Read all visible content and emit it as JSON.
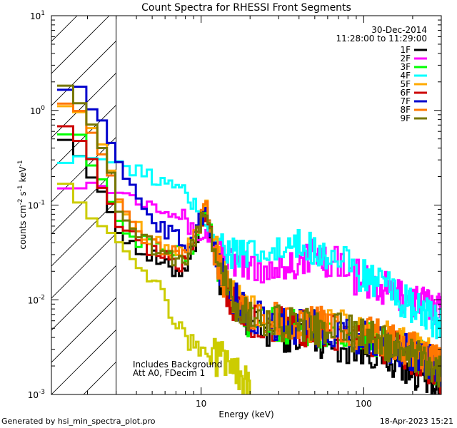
{
  "chart_data": {
    "type": "line",
    "title": "Count Spectra for RHESSI Front Segments",
    "xlabel": "Energy (keV)",
    "ylabel": {
      "base": "counts cm",
      "exp1": "-2",
      "mid1": " s",
      "exp2": "-1",
      "mid2": " keV",
      "exp3": "-1"
    },
    "xscale": "log",
    "yscale": "log",
    "xlim": [
      1.2,
      300
    ],
    "ylim": [
      0.001,
      10
    ],
    "x_ticks": [
      {
        "v": 10,
        "label": "10"
      },
      {
        "v": 100,
        "label": "100"
      }
    ],
    "y_ticks": [
      {
        "v": 0.001,
        "base": "10",
        "exp": "-3"
      },
      {
        "v": 0.01,
        "base": "10",
        "exp": "-2"
      },
      {
        "v": 0.1,
        "base": "10",
        "exp": "-1"
      },
      {
        "v": 1,
        "base": "10",
        "exp": "0"
      },
      {
        "v": 10,
        "base": "10",
        "exp": "1"
      }
    ],
    "hatched_region_max_keV": 3,
    "date": "30-Dec-2014",
    "time_range": "11:28:00 to 11:29:00",
    "annotation_lines": [
      "Includes Background",
      "Att A0, FDecim 1"
    ],
    "series": [
      {
        "name": "1F",
        "color": "#000000",
        "anchors": [
          [
            1.3,
            0.7
          ],
          [
            1.6,
            0.45
          ],
          [
            1.9,
            0.3
          ],
          [
            2.3,
            0.15
          ],
          [
            2.8,
            0.085
          ],
          [
            3.2,
            0.05
          ],
          [
            4,
            0.035
          ],
          [
            5,
            0.028
          ],
          [
            6,
            0.022
          ],
          [
            7,
            0.02
          ],
          [
            8,
            0.022
          ],
          [
            9,
            0.035
          ],
          [
            10,
            0.065
          ],
          [
            10.8,
            0.085
          ],
          [
            11.6,
            0.04
          ],
          [
            13,
            0.018
          ],
          [
            16,
            0.008
          ],
          [
            20,
            0.005
          ],
          [
            30,
            0.0045
          ],
          [
            50,
            0.004
          ],
          [
            80,
            0.0032
          ],
          [
            120,
            0.0028
          ],
          [
            180,
            0.002
          ],
          [
            250,
            0.0015
          ],
          [
            300,
            0.0012
          ]
        ]
      },
      {
        "name": "2F",
        "color": "#ff00ff",
        "anchors": [
          [
            1.3,
            0.17
          ],
          [
            2,
            0.165
          ],
          [
            2.5,
            0.16
          ],
          [
            3,
            0.14
          ],
          [
            4,
            0.12
          ],
          [
            5,
            0.11
          ],
          [
            6,
            0.1
          ],
          [
            7,
            0.085
          ],
          [
            8,
            0.07
          ],
          [
            9,
            0.05
          ],
          [
            10,
            0.045
          ],
          [
            10.8,
            0.05
          ],
          [
            12,
            0.035
          ],
          [
            15,
            0.025
          ],
          [
            20,
            0.022
          ],
          [
            30,
            0.022
          ],
          [
            40,
            0.025
          ],
          [
            50,
            0.03
          ],
          [
            70,
            0.025
          ],
          [
            100,
            0.015
          ],
          [
            150,
            0.012
          ],
          [
            200,
            0.01
          ],
          [
            300,
            0.008
          ]
        ]
      },
      {
        "name": "3F",
        "color": "#00ff00",
        "anchors": [
          [
            1.3,
            0.6
          ],
          [
            1.6,
            0.65
          ],
          [
            1.9,
            0.45
          ],
          [
            2.3,
            0.22
          ],
          [
            2.8,
            0.1
          ],
          [
            3.2,
            0.06
          ],
          [
            4,
            0.045
          ],
          [
            5,
            0.04
          ],
          [
            6,
            0.035
          ],
          [
            7,
            0.03
          ],
          [
            8,
            0.028
          ],
          [
            9,
            0.04
          ],
          [
            10,
            0.07
          ],
          [
            10.8,
            0.1
          ],
          [
            11.6,
            0.045
          ],
          [
            13,
            0.02
          ],
          [
            16,
            0.009
          ],
          [
            20,
            0.006
          ],
          [
            30,
            0.0055
          ],
          [
            50,
            0.005
          ],
          [
            80,
            0.0045
          ],
          [
            120,
            0.0035
          ],
          [
            180,
            0.003
          ],
          [
            250,
            0.0022
          ],
          [
            300,
            0.0018
          ]
        ]
      },
      {
        "name": "4F",
        "color": "#00ffff",
        "anchors": [
          [
            1.3,
            0.31
          ],
          [
            1.8,
            0.32
          ],
          [
            2.2,
            0.33
          ],
          [
            2.6,
            0.3
          ],
          [
            3,
            0.27
          ],
          [
            4,
            0.22
          ],
          [
            5,
            0.2
          ],
          [
            6,
            0.17
          ],
          [
            7,
            0.15
          ],
          [
            8,
            0.13
          ],
          [
            9,
            0.1
          ],
          [
            10,
            0.08
          ],
          [
            11,
            0.06
          ],
          [
            12,
            0.05
          ],
          [
            14,
            0.035
          ],
          [
            17,
            0.03
          ],
          [
            20,
            0.028
          ],
          [
            25,
            0.03
          ],
          [
            30,
            0.032
          ],
          [
            40,
            0.035
          ],
          [
            50,
            0.036
          ],
          [
            70,
            0.025
          ],
          [
            100,
            0.018
          ],
          [
            150,
            0.012
          ],
          [
            200,
            0.008
          ],
          [
            300,
            0.0055
          ]
        ]
      },
      {
        "name": "5F",
        "color": "#ffaa00",
        "anchors": [
          [
            1.3,
            1.3
          ],
          [
            1.6,
            1.2
          ],
          [
            1.9,
            0.9
          ],
          [
            2.3,
            0.5
          ],
          [
            2.8,
            0.25
          ],
          [
            3.2,
            0.1
          ],
          [
            4,
            0.06
          ],
          [
            5,
            0.045
          ],
          [
            6,
            0.035
          ],
          [
            7,
            0.03
          ],
          [
            8,
            0.03
          ],
          [
            9,
            0.045
          ],
          [
            10,
            0.075
          ],
          [
            10.8,
            0.1
          ],
          [
            11.6,
            0.05
          ],
          [
            13,
            0.022
          ],
          [
            16,
            0.01
          ],
          [
            20,
            0.007
          ],
          [
            30,
            0.006
          ],
          [
            50,
            0.0055
          ],
          [
            80,
            0.005
          ],
          [
            120,
            0.004
          ],
          [
            180,
            0.0035
          ],
          [
            250,
            0.0025
          ],
          [
            300,
            0.002
          ]
        ]
      },
      {
        "name": "6F",
        "color": "#cc0000",
        "anchors": [
          [
            1.3,
            0.85
          ],
          [
            1.6,
            0.7
          ],
          [
            1.9,
            0.45
          ],
          [
            2.3,
            0.2
          ],
          [
            2.8,
            0.095
          ],
          [
            3.2,
            0.055
          ],
          [
            4,
            0.04
          ],
          [
            5,
            0.032
          ],
          [
            6,
            0.028
          ],
          [
            7,
            0.024
          ],
          [
            8,
            0.024
          ],
          [
            9,
            0.038
          ],
          [
            10,
            0.07
          ],
          [
            10.8,
            0.09
          ],
          [
            11.6,
            0.045
          ],
          [
            13,
            0.02
          ],
          [
            16,
            0.009
          ],
          [
            20,
            0.006
          ],
          [
            30,
            0.0055
          ],
          [
            50,
            0.0048
          ],
          [
            80,
            0.0042
          ],
          [
            120,
            0.0035
          ],
          [
            180,
            0.0028
          ],
          [
            250,
            0.002
          ],
          [
            300,
            0.0016
          ]
        ]
      },
      {
        "name": "7F",
        "color": "#0000cc",
        "anchors": [
          [
            1.3,
            1.8
          ],
          [
            1.6,
            1.9
          ],
          [
            1.9,
            1.5
          ],
          [
            2.3,
            0.9
          ],
          [
            2.8,
            0.45
          ],
          [
            3.2,
            0.25
          ],
          [
            4,
            0.12
          ],
          [
            5,
            0.075
          ],
          [
            6,
            0.055
          ],
          [
            7,
            0.045
          ],
          [
            8,
            0.038
          ],
          [
            9,
            0.045
          ],
          [
            10,
            0.075
          ],
          [
            10.8,
            0.095
          ],
          [
            11.6,
            0.05
          ],
          [
            13,
            0.022
          ],
          [
            16,
            0.01
          ],
          [
            20,
            0.0065
          ],
          [
            30,
            0.0055
          ],
          [
            50,
            0.005
          ],
          [
            80,
            0.0045
          ],
          [
            120,
            0.0036
          ],
          [
            180,
            0.003
          ],
          [
            250,
            0.0022
          ],
          [
            300,
            0.0018
          ]
        ]
      },
      {
        "name": "8F",
        "color": "#ff7700",
        "anchors": [
          [
            1.3,
            1.5
          ],
          [
            1.6,
            1.2
          ],
          [
            1.9,
            0.85
          ],
          [
            2.3,
            0.45
          ],
          [
            2.8,
            0.22
          ],
          [
            3.2,
            0.09
          ],
          [
            4,
            0.055
          ],
          [
            5,
            0.042
          ],
          [
            6,
            0.034
          ],
          [
            7,
            0.03
          ],
          [
            8,
            0.028
          ],
          [
            9,
            0.042
          ],
          [
            10,
            0.07
          ],
          [
            10.8,
            0.095
          ],
          [
            11.6,
            0.048
          ],
          [
            13,
            0.021
          ],
          [
            16,
            0.0095
          ],
          [
            20,
            0.0065
          ],
          [
            30,
            0.006
          ],
          [
            50,
            0.0055
          ],
          [
            80,
            0.005
          ],
          [
            120,
            0.004
          ],
          [
            180,
            0.0033
          ],
          [
            250,
            0.0025
          ],
          [
            300,
            0.002
          ]
        ]
      },
      {
        "name": "9F",
        "color": "#777700",
        "anchors": [
          [
            1.3,
            2.4
          ],
          [
            1.6,
            1.8
          ],
          [
            1.9,
            1.0
          ],
          [
            2.3,
            0.5
          ],
          [
            2.8,
            0.2
          ],
          [
            3.2,
            0.08
          ],
          [
            4,
            0.05
          ],
          [
            5,
            0.038
          ],
          [
            6,
            0.032
          ],
          [
            7,
            0.028
          ],
          [
            8,
            0.026
          ],
          [
            9,
            0.04
          ],
          [
            10,
            0.068
          ],
          [
            10.8,
            0.09
          ],
          [
            11.6,
            0.046
          ],
          [
            13,
            0.02
          ],
          [
            16,
            0.009
          ],
          [
            20,
            0.0065
          ],
          [
            30,
            0.0058
          ],
          [
            50,
            0.005
          ],
          [
            80,
            0.0045
          ],
          [
            120,
            0.0038
          ],
          [
            180,
            0.003
          ],
          [
            250,
            0.0022
          ],
          [
            300,
            0.0018
          ]
        ]
      },
      {
        "name": "bg",
        "color": "#cccc00",
        "anchors": [
          [
            1.3,
            0.25
          ],
          [
            1.6,
            0.15
          ],
          [
            2,
            0.09
          ],
          [
            2.5,
            0.06
          ],
          [
            3,
            0.045
          ],
          [
            3.5,
            0.035
          ],
          [
            4,
            0.025
          ],
          [
            5,
            0.018
          ],
          [
            6,
            0.01
          ],
          [
            7,
            0.006
          ],
          [
            8,
            0.004
          ],
          [
            10,
            0.0028
          ],
          [
            12,
            0.0025
          ],
          [
            15,
            0.0022
          ],
          [
            18,
            0.0015
          ],
          [
            20,
            0.001
          ]
        ],
        "in_legend": false
      }
    ]
  },
  "footer": {
    "left": "Generated by hsi_min_spectra_plot.pro",
    "right": "18-Apr-2023 15:21"
  }
}
